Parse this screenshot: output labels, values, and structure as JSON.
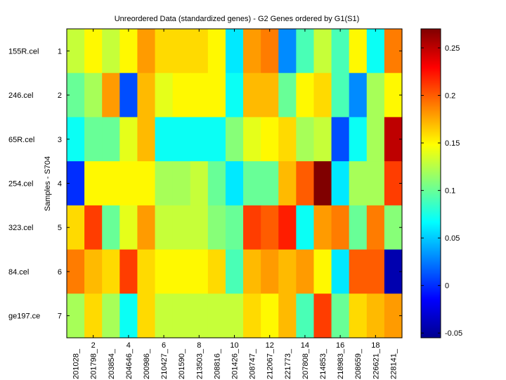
{
  "chart_data": {
    "type": "heatmap",
    "title": "Unreordered Data (standardized genes) - G2 Genes ordered by G1(S1)",
    "ylabel": "Samples - S704",
    "xlabel": "",
    "row_labels": [
      "155R.cel",
      "246.cel",
      "65R.cel",
      "254.cel",
      "323.cel",
      "84.cel",
      "ge197.ce"
    ],
    "row_ticks": [
      "1",
      "2",
      "3",
      "4",
      "5",
      "6",
      "7"
    ],
    "col_labels": [
      "201028_",
      "201798_",
      "203854_",
      "204646_",
      "200986_",
      "210427_",
      "201590_",
      "213503_",
      "208816_",
      "201426_",
      "208747_",
      "212067_",
      "221773_",
      "207808_",
      "214853_",
      "218983_",
      "208659_",
      "226621_",
      "228141_"
    ],
    "col_ticks": [
      "2",
      "4",
      "6",
      "8",
      "10",
      "12",
      "14",
      "16",
      "18"
    ],
    "col_tick_positions": [
      2,
      4,
      6,
      8,
      10,
      12,
      14,
      16,
      18
    ],
    "values": [
      [
        0.13,
        0.15,
        0.13,
        0.15,
        0.18,
        0.16,
        0.16,
        0.16,
        0.15,
        0.06,
        0.18,
        0.19,
        0.03,
        0.09,
        0.13,
        0.09,
        0.15,
        0.07,
        0.19
      ],
      [
        0.1,
        0.12,
        0.18,
        0.01,
        0.17,
        0.14,
        0.15,
        0.15,
        0.15,
        0.07,
        0.17,
        0.17,
        0.1,
        0.15,
        0.16,
        0.09,
        0.03,
        0.12,
        0.15
      ],
      [
        0.07,
        0.1,
        0.1,
        0.14,
        0.17,
        0.07,
        0.07,
        0.07,
        0.07,
        0.11,
        0.14,
        0.15,
        0.16,
        0.12,
        0.13,
        0.01,
        0.07,
        0.12,
        0.25
      ],
      [
        0.0,
        0.15,
        0.15,
        0.15,
        0.15,
        0.12,
        0.12,
        0.13,
        0.1,
        0.06,
        0.1,
        0.1,
        0.17,
        0.2,
        0.27,
        0.06,
        0.12,
        0.12,
        0.21
      ],
      [
        0.16,
        0.21,
        0.1,
        0.14,
        0.18,
        0.13,
        0.13,
        0.13,
        0.11,
        0.1,
        0.21,
        0.2,
        0.22,
        0.07,
        0.18,
        0.19,
        0.1,
        0.19,
        0.11
      ],
      [
        0.19,
        0.17,
        0.16,
        0.21,
        0.16,
        0.15,
        0.15,
        0.15,
        0.16,
        0.09,
        0.17,
        0.18,
        0.17,
        0.18,
        0.15,
        0.06,
        0.2,
        0.2,
        -0.04
      ],
      [
        0.12,
        0.16,
        0.12,
        0.07,
        0.16,
        0.13,
        0.13,
        0.13,
        0.13,
        0.13,
        0.16,
        0.15,
        0.17,
        0.09,
        0.21,
        0.1,
        0.16,
        0.17,
        0.18
      ]
    ],
    "colorbar": {
      "range": [
        -0.055,
        0.27
      ],
      "ticks": [
        -0.05,
        0,
        0.05,
        0.1,
        0.15,
        0.2,
        0.25
      ],
      "tick_labels": [
        "-0.05",
        "0",
        "0.05",
        "0.1",
        "0.15",
        "0.2",
        "0.25"
      ],
      "colormap": "jet"
    }
  }
}
